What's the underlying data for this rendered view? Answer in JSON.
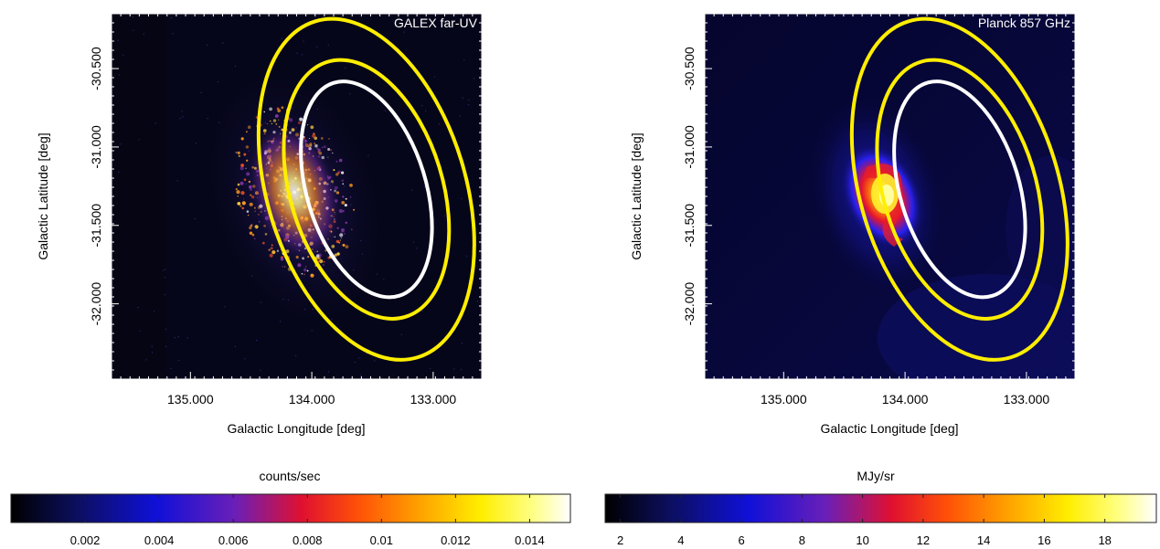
{
  "chart_data": [
    {
      "type": "heatmap",
      "label": "GALEX far-UV",
      "xlabel": "Galactic Longitude [deg]",
      "ylabel": "Galactic Latitude [deg]",
      "x_ticks": [
        "135.000",
        "134.000",
        "133.000"
      ],
      "x_tick_values": [
        135.0,
        134.0,
        133.0
      ],
      "xlim": [
        135.65,
        132.6
      ],
      "y_ticks": [
        "-30.500",
        "-31.000",
        "-31.500",
        "-32.000"
      ],
      "y_tick_values": [
        -30.5,
        -31.0,
        -31.5,
        -32.0
      ],
      "ylim": [
        -32.48,
        -30.15
      ],
      "ellipses": [
        {
          "color": "#ffee00",
          "center": [
            133.55,
            -31.27
          ],
          "semi_axes": [
            0.95,
            1.12
          ],
          "angle_deg": -17
        },
        {
          "color": "#ffee00",
          "center": [
            133.55,
            -31.27
          ],
          "semi_axes": [
            0.73,
            0.85
          ],
          "angle_deg": -17
        },
        {
          "color": "#ffffff",
          "center": [
            133.55,
            -31.27
          ],
          "semi_axes": [
            0.57,
            0.71
          ],
          "angle_deg": -17
        }
      ],
      "colorbar": {
        "label": "counts/sec",
        "ticks": [
          "0.002",
          "0.004",
          "0.006",
          "0.008",
          "0.01",
          "0.012",
          "0.014"
        ],
        "tick_values": [
          0.002,
          0.004,
          0.006,
          0.008,
          0.01,
          0.012,
          0.014
        ],
        "range": [
          0.0,
          0.0151
        ],
        "colors": [
          "#000000",
          "#0c0f60",
          "#1010d8",
          "#6a1fb8",
          "#e01030",
          "#ff5008",
          "#ff9a00",
          "#ffee00",
          "#ffff80",
          "#ffffff"
        ]
      }
    },
    {
      "type": "heatmap",
      "label": "Planck 857 GHz",
      "xlabel": "Galactic Longitude [deg]",
      "ylabel": "Galactic Latitude [deg]",
      "x_ticks": [
        "135.000",
        "134.000",
        "133.000"
      ],
      "x_tick_values": [
        135.0,
        134.0,
        133.0
      ],
      "xlim": [
        135.65,
        132.6
      ],
      "y_ticks": [
        "-30.500",
        "-31.000",
        "-31.500",
        "-32.000"
      ],
      "y_tick_values": [
        -30.5,
        -31.0,
        -31.5,
        -32.0
      ],
      "ylim": [
        -32.48,
        -30.15
      ],
      "ellipses": [
        {
          "color": "#ffee00",
          "center": [
            133.55,
            -31.27
          ],
          "semi_axes": [
            0.95,
            1.12
          ],
          "angle_deg": -17
        },
        {
          "color": "#ffee00",
          "center": [
            133.55,
            -31.27
          ],
          "semi_axes": [
            0.73,
            0.85
          ],
          "angle_deg": -17
        },
        {
          "color": "#ffffff",
          "center": [
            133.55,
            -31.27
          ],
          "semi_axes": [
            0.57,
            0.71
          ],
          "angle_deg": -17
        }
      ],
      "colorbar": {
        "label": "MJy/sr",
        "ticks": [
          "2",
          "4",
          "6",
          "8",
          "10",
          "12",
          "14",
          "16",
          "18"
        ],
        "tick_values": [
          2,
          4,
          6,
          8,
          10,
          12,
          14,
          16,
          18
        ],
        "range": [
          1.5,
          19.7
        ],
        "colors": [
          "#000000",
          "#0c0f60",
          "#1010d8",
          "#6a1fb8",
          "#e01030",
          "#ff5008",
          "#ff9a00",
          "#ffee00",
          "#ffff80",
          "#ffffff"
        ]
      }
    }
  ]
}
